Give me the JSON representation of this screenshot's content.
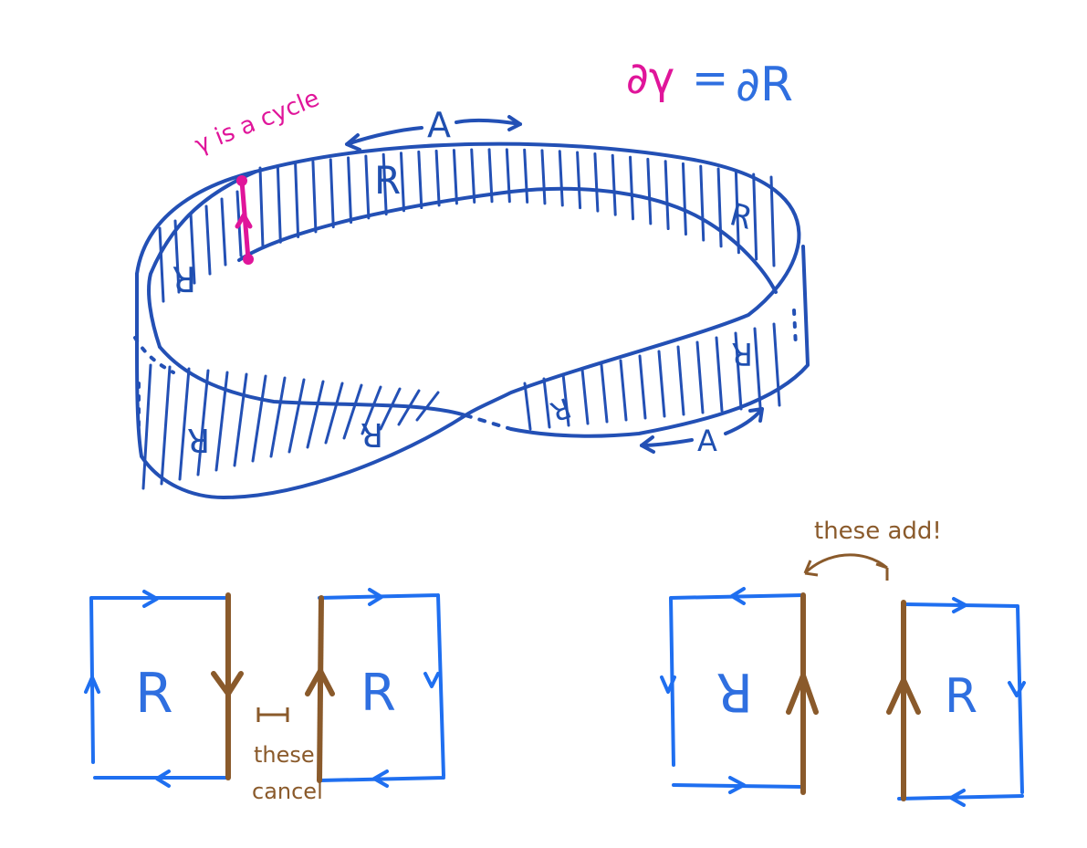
{
  "labels": {
    "equation_left": "∂γ",
    "equation_eq": "=",
    "equation_right": "∂R",
    "gamma_cycle": "γ is a cycle",
    "top_A": "A",
    "bottom_A": "A",
    "strip_R_top": "R",
    "these_cancel_line1": "these",
    "these_cancel_line2": "cancel",
    "these_add": "these add!",
    "box1_R": "R",
    "box2_R": "R",
    "box3_R": "R",
    "box4_R": "R"
  },
  "colors": {
    "blue": "#1f6ff0",
    "navy": "#2350b5",
    "pink": "#e0159a",
    "brown": "#8a5a2b"
  }
}
